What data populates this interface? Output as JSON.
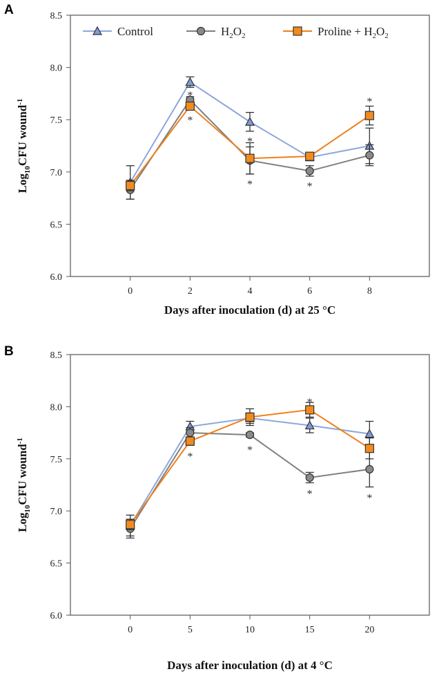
{
  "colors": {
    "Control": "#8ea6dd",
    "H2O2": "#7f7f7f",
    "Proline": "#ef7f1a",
    "ControlMarker": "#7f9ad6",
    "H2O2Marker": "#8a8a8a",
    "ProlineMarker": "#f28b1f"
  },
  "chart_data": [
    {
      "type": "line",
      "panel": "A",
      "title": "",
      "xlabel": "Days after inoculation (d) at 25 °C",
      "ylabel": "Log10CFU wound-1",
      "xlim": [
        -2,
        10
      ],
      "ylim": [
        6.0,
        8.5
      ],
      "xticks": [
        0,
        2,
        4,
        6,
        8
      ],
      "yticks": [
        "6.0",
        "6.5",
        "7.0",
        "7.5",
        "8.0",
        "8.5"
      ],
      "legend": "top-left",
      "x": [
        0,
        2,
        4,
        6,
        8
      ],
      "series": [
        {
          "name": "Control",
          "marker": "triangle",
          "values": [
            6.9,
            7.86,
            7.48,
            7.14,
            7.25
          ],
          "errors": [
            0.16,
            0.05,
            0.09,
            0.03,
            0.17
          ]
        },
        {
          "name": "H2O2",
          "marker": "circle",
          "values": [
            6.83,
            7.69,
            7.11,
            7.01,
            7.16
          ],
          "errors": [
            0.09,
            0.03,
            0.13,
            0.05,
            0.1
          ]
        },
        {
          "name": "Proline + H2O2",
          "marker": "square",
          "values": [
            6.87,
            7.63,
            7.13,
            7.15,
            7.54
          ],
          "errors": [
            0.05,
            0.03,
            0.15,
            0.02,
            0.09
          ]
        }
      ],
      "annotations": [
        {
          "text": "*",
          "x": 2,
          "y": 7.76
        },
        {
          "text": "*",
          "x": 2,
          "y": 7.52
        },
        {
          "text": "*",
          "x": 4,
          "y": 7.32
        },
        {
          "text": "*",
          "x": 4,
          "y": 6.91
        },
        {
          "text": "*",
          "x": 6,
          "y": 6.89
        },
        {
          "text": "*",
          "x": 8,
          "y": 7.7
        }
      ]
    },
    {
      "type": "line",
      "panel": "B",
      "title": "",
      "xlabel": "Days after inoculation (d) at 4 °C",
      "ylabel": "Log10CFU wound-1",
      "xlim": [
        -5,
        25
      ],
      "ylim": [
        6.0,
        8.5
      ],
      "xticks": [
        0,
        5,
        10,
        15,
        20
      ],
      "yticks": [
        "6.0",
        "6.5",
        "7.0",
        "7.5",
        "8.0",
        "8.5"
      ],
      "legend": "none",
      "x": [
        0,
        5,
        10,
        15,
        20
      ],
      "series": [
        {
          "name": "Control",
          "marker": "triangle",
          "values": [
            6.86,
            7.81,
            7.89,
            7.82,
            7.74
          ],
          "errors": [
            0.1,
            0.05,
            0.05,
            0.07,
            0.12
          ]
        },
        {
          "name": "H2O2",
          "marker": "circle",
          "values": [
            6.83,
            7.75,
            7.73,
            7.32,
            7.4
          ],
          "errors": [
            0.09,
            0.05,
            0.02,
            0.05,
            0.17
          ]
        },
        {
          "name": "Proline + H2O2",
          "marker": "square",
          "values": [
            6.87,
            7.67,
            7.9,
            7.97,
            7.6
          ],
          "errors": [
            0.05,
            0.04,
            0.08,
            0.07,
            0.1
          ]
        }
      ],
      "annotations": [
        {
          "text": "*",
          "x": 5,
          "y": 7.55
        },
        {
          "text": "*",
          "x": 10,
          "y": 7.61
        },
        {
          "text": "*",
          "x": 15,
          "y": 8.07
        },
        {
          "text": "*",
          "x": 15,
          "y": 7.19
        },
        {
          "text": "*",
          "x": 20,
          "y": 7.15
        }
      ]
    }
  ]
}
